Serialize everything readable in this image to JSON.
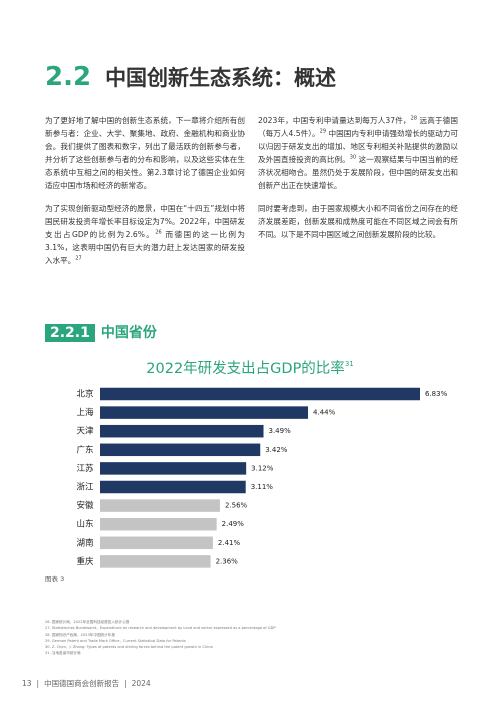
{
  "section": {
    "number": "2.2",
    "title": "中国创新生态系统：概述"
  },
  "columns": [
    [
      [
        {
          "text": "为了更好地了解中国的创新生态系统，下一章将介绍所有创新参与者：企业、大学、聚集地、政府、金融机构和商业协会。我们提供了图表和数字，列出了最活跃的创新参与者，并分析了这些创新参与者的分布和影响，以及这些实体在生态系统中互相之间的相关性。第2.3章讨论了德国企业如何适应中国市场和经济的新常态。"
        }
      ],
      [
        {
          "text": "为了实现创新驱动型经济的愿景，中国在“十四五”规划中将国民研发投资年增长率目标设定为7%。2022年，中国研发支出占GDP的比例为2.6%。"
        },
        {
          "sup": "26"
        },
        {
          "text": " 而德国的这一比例为3.1%，这表明中国仍有巨大的潜力赶上发达国家的研发投入水平。"
        },
        {
          "sup": "27"
        }
      ]
    ],
    [
      [
        {
          "text": "2023年，中国专利申请量达到每万人37件，"
        },
        {
          "sup": "28"
        },
        {
          "text": " 远高于德国（每万人4.5件）。"
        },
        {
          "sup": "29"
        },
        {
          "text": " 中国国内专利申请强劲增长的驱动力可以归因于研发支出的增加、地区专利相关补贴提供的激励以及外国直接投资的高比例。"
        },
        {
          "sup": "30"
        },
        {
          "text": " 这一观察结果与中国当前的经济状况相吻合。虽然仍处于发展阶段，但中国的研发支出和创新产出正在快速增长。"
        }
      ],
      [
        {
          "text": "同时要考虑到，由于国家规模大小和不同省份之间存在的经济发展差距，创新发展和成熟度可能在不同区域之间会有所不同。以下是不同中国区域之间创新发展阶段的比较。"
        }
      ]
    ]
  ],
  "subsection": {
    "number": "2.2.1",
    "title": "中国省份"
  },
  "chart_data": {
    "type": "bar",
    "orientation": "horizontal",
    "title": "2022年研发支出占GDP的比率",
    "title_note": "31",
    "categories": [
      "北京",
      "上海",
      "天津",
      "广东",
      "江苏",
      "浙江",
      "安徽",
      "山东",
      "湖南",
      "重庆"
    ],
    "values": [
      6.83,
      4.44,
      3.49,
      3.42,
      3.12,
      3.11,
      2.56,
      2.49,
      2.41,
      2.36
    ],
    "value_labels": [
      "6.83%",
      "4.44%",
      "3.49%",
      "3.42%",
      "3.12%",
      "3.11%",
      "2.56%",
      "2.49%",
      "2.41%",
      "2.36%"
    ],
    "colors": [
      "#1f3864",
      "#1f3864",
      "#1f3864",
      "#1f3864",
      "#1f3864",
      "#1f3864",
      "#c4c4c4",
      "#c4c4c4",
      "#c4c4c4",
      "#c4c4c4"
    ]
  },
  "figure_label": "图表 3",
  "footnotes": [
    "26. 国家统计局，2022年全国科技经费投入统计公报",
    "27. Statistisches Bundesamt，Expenditure on research and development by Land and sector expressed as a percentage of GDP",
    "28. 国家知识产权局，2023年中国统计年报",
    "29. German Patent and Trade Mark Office，Current Statistical Data for Patents",
    "30. Z. Chen，J. Zhang: Types of patents and driving forces behind the patent growth in China",
    "31. 当地各省市统计局"
  ],
  "footer": {
    "page": "13",
    "separator": "|",
    "title": "中国德国商会创新报告",
    "year": "2024"
  }
}
